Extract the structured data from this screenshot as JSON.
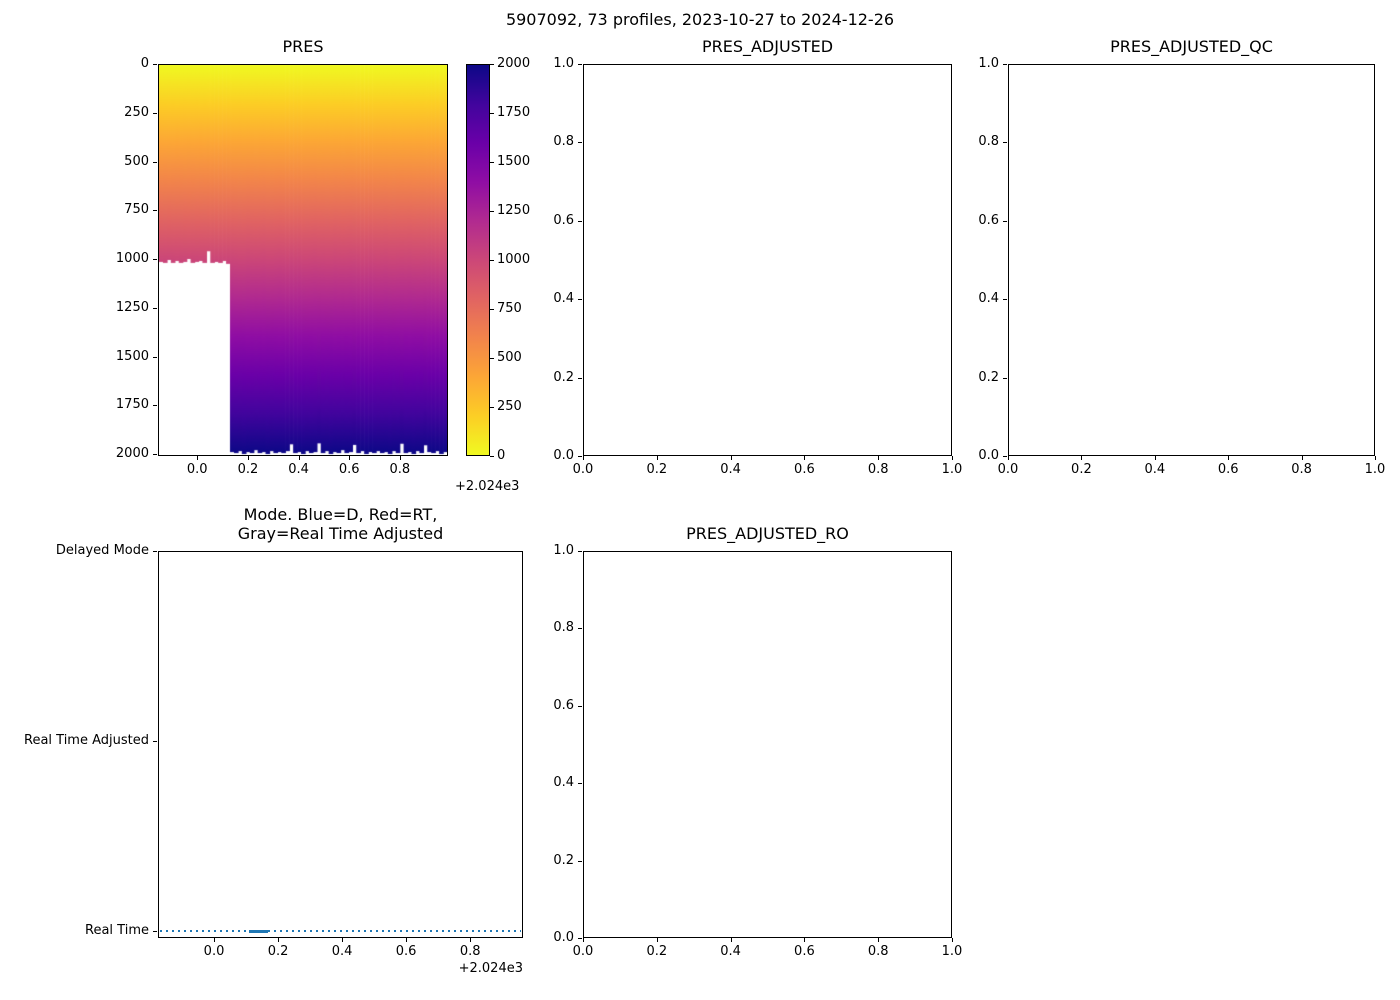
{
  "figure": {
    "suptitle": "5907092, 73 profiles, 2023-10-27 to 2024-12-26",
    "background": "#ffffff"
  },
  "colors": {
    "axis": "#000000",
    "line_blue": "#1f77b4"
  },
  "chart_data": [
    {
      "id": "pres",
      "type": "heatmap",
      "title": "PRES",
      "xlabel_offset": "+2.024e3",
      "xlim": [
        -0.155,
        0.99
      ],
      "ylim": [
        2010,
        0
      ],
      "xticks": [
        0.0,
        0.2,
        0.4,
        0.6,
        0.8
      ],
      "xtick_labels": [
        "0.0",
        "0.2",
        "0.4",
        "0.6",
        "0.8"
      ],
      "yticks": [
        0,
        250,
        500,
        750,
        1000,
        1250,
        1500,
        1750,
        2000
      ],
      "ytick_labels": [
        "0",
        "250",
        "500",
        "750",
        "1000",
        "1250",
        "1500",
        "1750",
        "2000"
      ],
      "n_profiles": 73,
      "x_start": -0.155,
      "x_step": 0.015685,
      "value_range": [
        0,
        2000
      ],
      "colormap": "plasma_r",
      "colormap_stops": [
        [
          0.0,
          "#0d0887"
        ],
        [
          0.1,
          "#41049d"
        ],
        [
          0.2,
          "#6a00a8"
        ],
        [
          0.3,
          "#8f0da4"
        ],
        [
          0.4,
          "#b12a90"
        ],
        [
          0.5,
          "#cc4778"
        ],
        [
          0.6,
          "#e16462"
        ],
        [
          0.7,
          "#f2844b"
        ],
        [
          0.8,
          "#fca636"
        ],
        [
          0.9,
          "#fcce25"
        ],
        [
          1.0,
          "#f0f921"
        ]
      ],
      "profile_max_pressure": [
        1015,
        1020,
        1005,
        1020,
        1010,
        1020,
        1015,
        1000,
        1020,
        1015,
        1010,
        1020,
        960,
        1020,
        1015,
        1020,
        1010,
        1025,
        1995,
        2000,
        1990,
        2005,
        1995,
        2000,
        1985,
        2000,
        1995,
        2005,
        1990,
        2000,
        1995,
        2000,
        1990,
        1955,
        2000,
        1995,
        2005,
        1990,
        2000,
        1995,
        1950,
        2000,
        1990,
        2005,
        1995,
        2000,
        1985,
        2000,
        1995,
        1958,
        2000,
        1990,
        2005,
        1995,
        2000,
        1990,
        2000,
        1995,
        2005,
        1990,
        2000,
        1952,
        2000,
        1995,
        2005,
        1990,
        2000,
        1960,
        1995,
        2000,
        1990,
        2005,
        1995
      ],
      "colorbar": {
        "vmin": 0,
        "vmax": 2000,
        "ticks": [
          0,
          250,
          500,
          750,
          1000,
          1250,
          1500,
          1750,
          2000
        ],
        "labels": [
          "0",
          "250",
          "500",
          "750",
          "1000",
          "1250",
          "1500",
          "1750",
          "2000"
        ]
      }
    },
    {
      "id": "pres_adjusted",
      "type": "empty",
      "title": "PRES_ADJUSTED",
      "xlim": [
        0,
        1
      ],
      "ylim": [
        0,
        1
      ],
      "xticks": [
        0,
        0.2,
        0.4,
        0.6,
        0.8,
        1
      ],
      "xtick_labels": [
        "0.0",
        "0.2",
        "0.4",
        "0.6",
        "0.8",
        "1.0"
      ],
      "yticks": [
        0,
        0.2,
        0.4,
        0.6,
        0.8,
        1
      ],
      "ytick_labels": [
        "0.0",
        "0.2",
        "0.4",
        "0.6",
        "0.8",
        "1.0"
      ]
    },
    {
      "id": "pres_adjusted_qc",
      "type": "empty",
      "title": "PRES_ADJUSTED_QC",
      "xlim": [
        0,
        1
      ],
      "ylim": [
        0,
        1
      ],
      "xticks": [
        0,
        0.2,
        0.4,
        0.6,
        0.8,
        1
      ],
      "xtick_labels": [
        "0.0",
        "0.2",
        "0.4",
        "0.6",
        "0.8",
        "1.0"
      ],
      "yticks": [
        0,
        0.2,
        0.4,
        0.6,
        0.8,
        1
      ],
      "ytick_labels": [
        "0.0",
        "0.2",
        "0.4",
        "0.6",
        "0.8",
        "1.0"
      ]
    },
    {
      "id": "mode",
      "type": "categorical_line",
      "title_lines": [
        "Mode. Blue=D, Red=RT,",
        "Gray=Real Time Adjusted"
      ],
      "xlabel_offset": "+2.024e3",
      "xlim": [
        -0.175,
        0.965
      ],
      "ylim": [
        -0.035,
        2.0
      ],
      "xticks": [
        0.0,
        0.2,
        0.4,
        0.6,
        0.8
      ],
      "xtick_labels": [
        "0.0",
        "0.2",
        "0.4",
        "0.6",
        "0.8"
      ],
      "categories": [
        "Real Time",
        "Real Time Adjusted",
        "Delayed Mode"
      ],
      "line": {
        "color": "#1f77b4",
        "style": "dotted",
        "category": "Real Time",
        "x_start": -0.17,
        "x_end": 0.96,
        "solid_segment": [
          0.11,
          0.17
        ]
      }
    },
    {
      "id": "pres_adjusted_ro",
      "type": "empty",
      "title": "PRES_ADJUSTED_RO",
      "xlim": [
        0,
        1
      ],
      "ylim": [
        0,
        1
      ],
      "xticks": [
        0,
        0.2,
        0.4,
        0.6,
        0.8,
        1
      ],
      "xtick_labels": [
        "0.0",
        "0.2",
        "0.4",
        "0.6",
        "0.8",
        "1.0"
      ],
      "yticks": [
        0,
        0.2,
        0.4,
        0.6,
        0.8,
        1
      ],
      "ytick_labels": [
        "0.0",
        "0.2",
        "0.4",
        "0.6",
        "0.8",
        "1.0"
      ]
    }
  ]
}
